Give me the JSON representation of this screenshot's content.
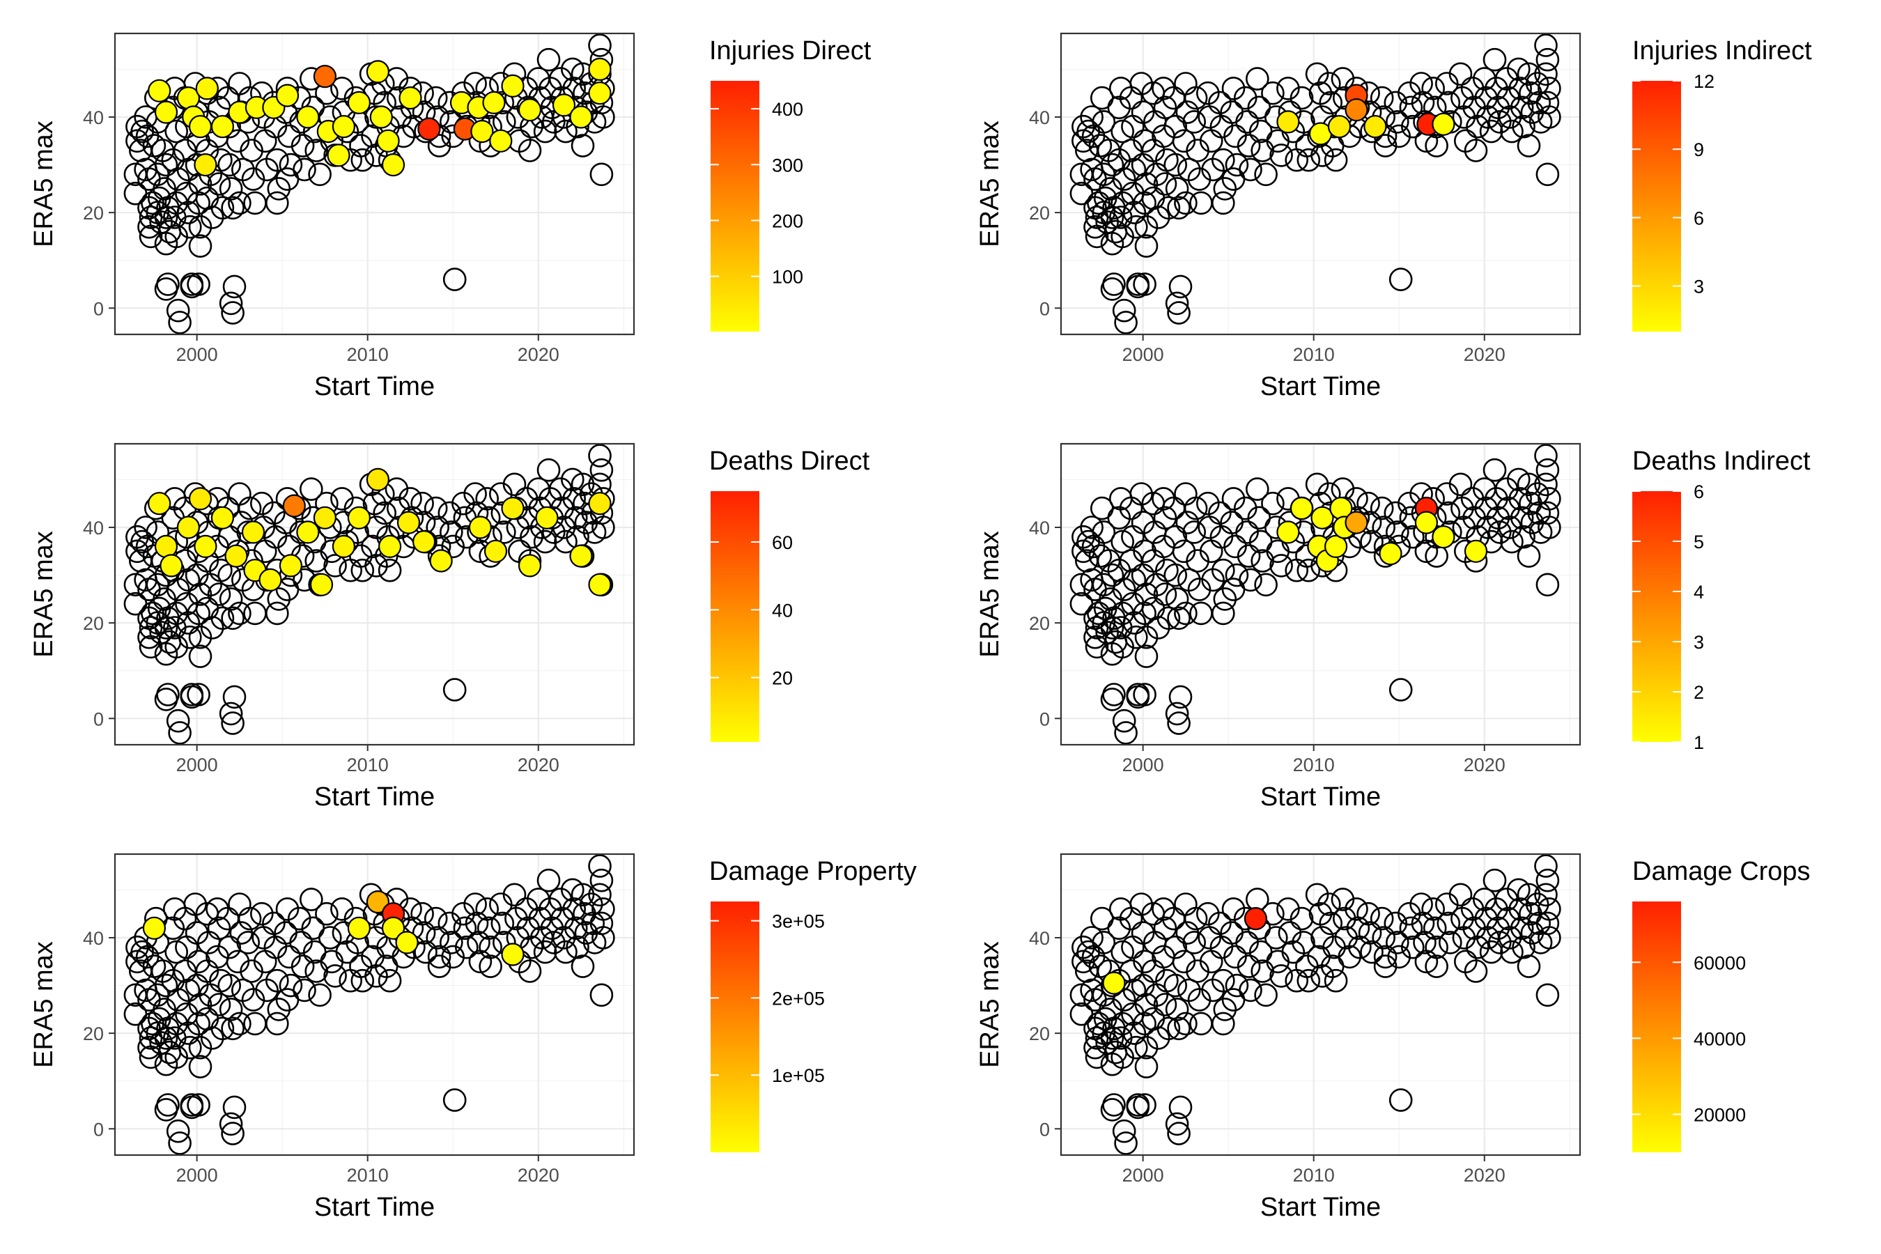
{
  "chart_data": [
    {
      "type": "scatter",
      "panel": "injuries-direct",
      "xlabel": "Start Time",
      "ylabel": "ERA5 max",
      "x_ticks": [
        2000,
        2010,
        2020
      ],
      "y_ticks": [
        0,
        20,
        40
      ],
      "xlim": [
        1995.2,
        2025.6
      ],
      "ylim": [
        -5.5,
        57.5
      ],
      "legend": {
        "title": "Injuries Direct",
        "min": 1,
        "max": 450,
        "ticks": [
          100,
          200,
          300,
          400
        ],
        "tick_labels": [
          "100",
          "200",
          "300",
          "400"
        ],
        "colors": [
          "#FFFF00",
          "#FF2000"
        ]
      },
      "highlighted": [
        {
          "x": 1997.8,
          "y": 45.5,
          "v": 5
        },
        {
          "x": 1998.2,
          "y": 41,
          "v": 8
        },
        {
          "x": 1999.5,
          "y": 44,
          "v": 12
        },
        {
          "x": 1999.8,
          "y": 40,
          "v": 6
        },
        {
          "x": 2000.2,
          "y": 38,
          "v": 10
        },
        {
          "x": 2000.6,
          "y": 46,
          "v": 20
        },
        {
          "x": 2000.5,
          "y": 30,
          "v": 35
        },
        {
          "x": 2001.5,
          "y": 38,
          "v": 6
        },
        {
          "x": 2002.5,
          "y": 41,
          "v": 7
        },
        {
          "x": 2003.5,
          "y": 42,
          "v": 9
        },
        {
          "x": 2004.5,
          "y": 42,
          "v": 4
        },
        {
          "x": 2005.3,
          "y": 44.5,
          "v": 8
        },
        {
          "x": 2006.5,
          "y": 40,
          "v": 6
        },
        {
          "x": 2007.5,
          "y": 48.5,
          "v": 300
        },
        {
          "x": 2007.7,
          "y": 37,
          "v": 8
        },
        {
          "x": 2008.3,
          "y": 32,
          "v": 4
        },
        {
          "x": 2008.6,
          "y": 38,
          "v": 10
        },
        {
          "x": 2009.5,
          "y": 43,
          "v": 6
        },
        {
          "x": 2010.6,
          "y": 49.5,
          "v": 15
        },
        {
          "x": 2010.8,
          "y": 40,
          "v": 5
        },
        {
          "x": 2011.2,
          "y": 35,
          "v": 9
        },
        {
          "x": 2011.5,
          "y": 30,
          "v": 12
        },
        {
          "x": 2012.5,
          "y": 44,
          "v": 7
        },
        {
          "x": 2013.6,
          "y": 37.5,
          "v": 430
        },
        {
          "x": 2015.5,
          "y": 43,
          "v": 10
        },
        {
          "x": 2015.7,
          "y": 37.5,
          "v": 350
        },
        {
          "x": 2016.5,
          "y": 42,
          "v": 8
        },
        {
          "x": 2016.7,
          "y": 37,
          "v": 15
        },
        {
          "x": 2017.4,
          "y": 43,
          "v": 6
        },
        {
          "x": 2017.8,
          "y": 35,
          "v": 5
        },
        {
          "x": 2018.5,
          "y": 46.5,
          "v": 9
        },
        {
          "x": 2019.5,
          "y": 41.5,
          "v": 7
        },
        {
          "x": 2021.5,
          "y": 42.5,
          "v": 8
        },
        {
          "x": 2022.5,
          "y": 40,
          "v": 6
        },
        {
          "x": 2023.6,
          "y": 45,
          "v": 12
        },
        {
          "x": 2023.6,
          "y": 50,
          "v": 20
        }
      ]
    },
    {
      "type": "scatter",
      "panel": "injuries-indirect",
      "xlabel": "Start Time",
      "ylabel": "ERA5 max",
      "x_ticks": [
        2000,
        2010,
        2020
      ],
      "y_ticks": [
        0,
        20,
        40
      ],
      "xlim": [
        1995.2,
        2025.6
      ],
      "ylim": [
        -5.5,
        57.5
      ],
      "legend": {
        "title": "Injuries Indirect",
        "min": 1,
        "max": 12,
        "ticks": [
          3,
          6,
          9,
          12
        ],
        "tick_labels": [
          "3",
          "6",
          "9",
          "12"
        ],
        "colors": [
          "#FFFF00",
          "#FF2000"
        ]
      },
      "highlighted": [
        {
          "x": 2008.5,
          "y": 39,
          "v": 2
        },
        {
          "x": 2010.4,
          "y": 36.5,
          "v": 1
        },
        {
          "x": 2011.5,
          "y": 38,
          "v": 2
        },
        {
          "x": 2012.5,
          "y": 44.5,
          "v": 10
        },
        {
          "x": 2012.5,
          "y": 41.5,
          "v": 7
        },
        {
          "x": 2013.6,
          "y": 38,
          "v": 2
        },
        {
          "x": 2016.7,
          "y": 38.5,
          "v": 12
        },
        {
          "x": 2017.6,
          "y": 38.5,
          "v": 1
        }
      ]
    },
    {
      "type": "scatter",
      "panel": "deaths-direct",
      "xlabel": "Start Time",
      "ylabel": "ERA5 max",
      "x_ticks": [
        2000,
        2010,
        2020
      ],
      "y_ticks": [
        0,
        20,
        40
      ],
      "xlim": [
        1995.2,
        2025.6
      ],
      "ylim": [
        -5.5,
        57.5
      ],
      "legend": {
        "title": "Deaths Direct",
        "min": 1,
        "max": 75,
        "ticks": [
          20,
          40,
          60
        ],
        "tick_labels": [
          "20",
          "40",
          "60"
        ],
        "colors": [
          "#FFFF00",
          "#FF2000"
        ]
      },
      "highlighted": [
        {
          "x": 1997.8,
          "y": 45,
          "v": 4
        },
        {
          "x": 1998.2,
          "y": 36,
          "v": 6
        },
        {
          "x": 1998.5,
          "y": 32,
          "v": 3
        },
        {
          "x": 1999.5,
          "y": 40,
          "v": 5
        },
        {
          "x": 2000.2,
          "y": 46,
          "v": 8
        },
        {
          "x": 2000.5,
          "y": 36,
          "v": 3
        },
        {
          "x": 2001.5,
          "y": 42,
          "v": 4
        },
        {
          "x": 2002.3,
          "y": 34,
          "v": 6
        },
        {
          "x": 2003.3,
          "y": 39,
          "v": 5
        },
        {
          "x": 2003.4,
          "y": 31,
          "v": 3
        },
        {
          "x": 2004.3,
          "y": 29,
          "v": 4
        },
        {
          "x": 2005.7,
          "y": 44.5,
          "v": 45
        },
        {
          "x": 2005.5,
          "y": 32,
          "v": 4
        },
        {
          "x": 2006.5,
          "y": 39,
          "v": 3
        },
        {
          "x": 2007.5,
          "y": 42,
          "v": 7
        },
        {
          "x": 2007.3,
          "y": 28,
          "v": 3
        },
        {
          "x": 2008.6,
          "y": 36,
          "v": 5
        },
        {
          "x": 2009.5,
          "y": 42,
          "v": 4
        },
        {
          "x": 2010.6,
          "y": 50,
          "v": 9
        },
        {
          "x": 2011.3,
          "y": 36,
          "v": 3
        },
        {
          "x": 2012.4,
          "y": 41,
          "v": 6
        },
        {
          "x": 2013.3,
          "y": 37,
          "v": 5
        },
        {
          "x": 2014.3,
          "y": 33,
          "v": 3
        },
        {
          "x": 2016.6,
          "y": 40,
          "v": 4
        },
        {
          "x": 2017.5,
          "y": 35,
          "v": 5
        },
        {
          "x": 2018.5,
          "y": 44,
          "v": 6
        },
        {
          "x": 2019.5,
          "y": 32,
          "v": 3
        },
        {
          "x": 2020.5,
          "y": 42,
          "v": 4
        },
        {
          "x": 2022.5,
          "y": 34,
          "v": 3
        },
        {
          "x": 2023.6,
          "y": 45,
          "v": 8
        },
        {
          "x": 2023.6,
          "y": 28,
          "v": 2
        }
      ]
    },
    {
      "type": "scatter",
      "panel": "deaths-indirect",
      "xlabel": "Start Time",
      "ylabel": "ERA5 max",
      "x_ticks": [
        2000,
        2010,
        2020
      ],
      "y_ticks": [
        0,
        20,
        40
      ],
      "xlim": [
        1995.2,
        2025.6
      ],
      "ylim": [
        -5.5,
        57.5
      ],
      "legend": {
        "title": "Deaths Indirect",
        "min": 1,
        "max": 6,
        "ticks": [
          1,
          2,
          3,
          4,
          5,
          6
        ],
        "tick_labels": [
          "1",
          "2",
          "3",
          "4",
          "5",
          "6"
        ],
        "colors": [
          "#FFFF00",
          "#FF2000"
        ]
      },
      "highlighted": [
        {
          "x": 2008.5,
          "y": 39,
          "v": 1
        },
        {
          "x": 2009.3,
          "y": 44,
          "v": 1
        },
        {
          "x": 2010.3,
          "y": 36,
          "v": 1
        },
        {
          "x": 2010.5,
          "y": 42,
          "v": 1
        },
        {
          "x": 2010.8,
          "y": 33,
          "v": 1
        },
        {
          "x": 2011.3,
          "y": 36,
          "v": 1
        },
        {
          "x": 2011.6,
          "y": 44,
          "v": 1
        },
        {
          "x": 2011.8,
          "y": 40,
          "v": 1
        },
        {
          "x": 2012.5,
          "y": 41,
          "v": 3
        },
        {
          "x": 2014.5,
          "y": 34.5,
          "v": 1
        },
        {
          "x": 2016.6,
          "y": 44,
          "v": 6
        },
        {
          "x": 2016.6,
          "y": 41,
          "v": 1
        },
        {
          "x": 2017.6,
          "y": 38,
          "v": 1
        },
        {
          "x": 2019.5,
          "y": 35,
          "v": 1
        }
      ]
    },
    {
      "type": "scatter",
      "panel": "damage-property",
      "xlabel": "Start Time",
      "ylabel": "ERA5 max",
      "x_ticks": [
        2000,
        2010,
        2020
      ],
      "y_ticks": [
        0,
        20,
        40
      ],
      "xlim": [
        1995.2,
        2025.6
      ],
      "ylim": [
        -5.5,
        57.5
      ],
      "legend": {
        "title": "Damage Property",
        "min": 1,
        "max": 325000,
        "ticks": [
          100000,
          200000,
          300000
        ],
        "tick_labels": [
          "1e+05",
          "2e+05",
          "3e+05"
        ],
        "colors": [
          "#FFFF00",
          "#FF2000"
        ]
      },
      "highlighted": [
        {
          "x": 1997.5,
          "y": 42,
          "v": 5000
        },
        {
          "x": 2009.5,
          "y": 42,
          "v": 8000
        },
        {
          "x": 2010.6,
          "y": 47.5,
          "v": 110000
        },
        {
          "x": 2011.5,
          "y": 45,
          "v": 320000
        },
        {
          "x": 2011.5,
          "y": 42,
          "v": 9000
        },
        {
          "x": 2012.3,
          "y": 39,
          "v": 5000
        },
        {
          "x": 2018.5,
          "y": 36.5,
          "v": 6000
        }
      ]
    },
    {
      "type": "scatter",
      "panel": "damage-crops",
      "xlabel": "Start Time",
      "ylabel": "ERA5 max",
      "x_ticks": [
        2000,
        2010,
        2020
      ],
      "y_ticks": [
        0,
        20,
        40
      ],
      "xlim": [
        1995.2,
        2025.6
      ],
      "ylim": [
        -5.5,
        57.5
      ],
      "legend": {
        "title": "Damage Crops",
        "min": 10000,
        "max": 76000,
        "ticks": [
          20000,
          40000,
          60000
        ],
        "tick_labels": [
          "20000",
          "40000",
          "60000"
        ],
        "colors": [
          "#FFFF00",
          "#FF2000"
        ]
      },
      "highlighted": [
        {
          "x": 1998.3,
          "y": 30.5,
          "v": 10000
        },
        {
          "x": 2006.6,
          "y": 44,
          "v": 76000
        }
      ]
    }
  ],
  "background_points": [
    [
      1996.5,
      38
    ],
    [
      1996.5,
      35
    ],
    [
      1996.7,
      33
    ],
    [
      1996.4,
      28
    ],
    [
      1996.4,
      24
    ],
    [
      1996.8,
      37
    ],
    [
      1997.0,
      40
    ],
    [
      1997.1,
      36
    ],
    [
      1997.0,
      29
    ],
    [
      1997.2,
      27
    ],
    [
      1997.2,
      21
    ],
    [
      1997.3,
      19
    ],
    [
      1997.2,
      17
    ],
    [
      1997.4,
      22
    ],
    [
      1997.3,
      15
    ],
    [
      1997.6,
      44
    ],
    [
      1997.7,
      39
    ],
    [
      1997.5,
      34
    ],
    [
      1997.7,
      28
    ],
    [
      1997.8,
      23
    ],
    [
      1997.7,
      20
    ],
    [
      1997.9,
      18
    ],
    [
      1998.0,
      33
    ],
    [
      1998.2,
      30
    ],
    [
      1998.1,
      25
    ],
    [
      1998.3,
      21
    ],
    [
      1998.2,
      19
    ],
    [
      1998.4,
      16
    ],
    [
      1998.2,
      13.5
    ],
    [
      1998.3,
      5
    ],
    [
      1998.2,
      4
    ],
    [
      1998.7,
      46
    ],
    [
      1998.6,
      42
    ],
    [
      1998.8,
      37
    ],
    [
      1998.6,
      31
    ],
    [
      1998.9,
      27
    ],
    [
      1998.8,
      22
    ],
    [
      1998.7,
      19
    ],
    [
      1998.8,
      15
    ],
    [
      1998.9,
      -0.5
    ],
    [
      1999.0,
      -3
    ],
    [
      1999.3,
      44
    ],
    [
      1999.4,
      38
    ],
    [
      1999.3,
      33
    ],
    [
      1999.5,
      29
    ],
    [
      1999.4,
      24
    ],
    [
      1999.5,
      20
    ],
    [
      1999.6,
      17
    ],
    [
      1999.7,
      4.5
    ],
    [
      1999.7,
      5
    ],
    [
      1999.9,
      47
    ],
    [
      2000.0,
      41
    ],
    [
      2000.1,
      35
    ],
    [
      2000.0,
      30
    ],
    [
      2000.2,
      26
    ],
    [
      2000.1,
      22
    ],
    [
      2000.2,
      17
    ],
    [
      2000.2,
      13
    ],
    [
      2000.1,
      5
    ],
    [
      2000.6,
      45
    ],
    [
      2000.7,
      39
    ],
    [
      2000.6,
      33
    ],
    [
      2000.8,
      28
    ],
    [
      2000.6,
      23
    ],
    [
      2000.9,
      19
    ],
    [
      2001.2,
      46
    ],
    [
      2001.3,
      42
    ],
    [
      2001.2,
      36
    ],
    [
      2001.4,
      31
    ],
    [
      2001.3,
      26
    ],
    [
      2001.5,
      21
    ],
    [
      2001.8,
      44
    ],
    [
      2001.9,
      38
    ],
    [
      2001.9,
      30
    ],
    [
      2002.0,
      25
    ],
    [
      2002.1,
      21
    ],
    [
      2002.2,
      4.5
    ],
    [
      2002.0,
      1
    ],
    [
      2002.1,
      -1
    ],
    [
      2002.5,
      47
    ],
    [
      2002.6,
      41
    ],
    [
      2002.4,
      35
    ],
    [
      2002.7,
      29
    ],
    [
      2002.5,
      22
    ],
    [
      2003.1,
      44
    ],
    [
      2003.0,
      39
    ],
    [
      2003.2,
      33
    ],
    [
      2003.3,
      27
    ],
    [
      2003.4,
      22
    ],
    [
      2003.8,
      45
    ],
    [
      2003.9,
      40
    ],
    [
      2004.0,
      35
    ],
    [
      2004.1,
      29
    ],
    [
      2004.5,
      43
    ],
    [
      2004.6,
      38
    ],
    [
      2004.7,
      31
    ],
    [
      2004.8,
      25
    ],
    [
      2004.7,
      22
    ],
    [
      2005.3,
      46
    ],
    [
      2005.2,
      41
    ],
    [
      2005.4,
      36
    ],
    [
      2005.5,
      30
    ],
    [
      2005.3,
      27
    ],
    [
      2006.0,
      44
    ],
    [
      2006.1,
      39
    ],
    [
      2006.2,
      34
    ],
    [
      2006.3,
      29
    ],
    [
      2006.7,
      48
    ],
    [
      2006.8,
      42
    ],
    [
      2006.9,
      37
    ],
    [
      2007.0,
      33
    ],
    [
      2007.2,
      28
    ],
    [
      2007.6,
      45
    ],
    [
      2007.8,
      40
    ],
    [
      2007.9,
      35
    ],
    [
      2008.1,
      32
    ],
    [
      2008.5,
      46
    ],
    [
      2008.6,
      41
    ],
    [
      2008.8,
      37
    ],
    [
      2009.0,
      31
    ],
    [
      2009.3,
      44
    ],
    [
      2009.4,
      39
    ],
    [
      2009.6,
      34
    ],
    [
      2009.7,
      31
    ],
    [
      2010.2,
      49
    ],
    [
      2010.4,
      45
    ],
    [
      2010.5,
      40
    ],
    [
      2010.3,
      36
    ],
    [
      2010.5,
      32
    ],
    [
      2010.9,
      47
    ],
    [
      2011.0,
      43
    ],
    [
      2011.2,
      38
    ],
    [
      2011.1,
      34
    ],
    [
      2011.3,
      31
    ],
    [
      2011.7,
      48
    ],
    [
      2011.8,
      44
    ],
    [
      2011.9,
      40
    ],
    [
      2012.1,
      36
    ],
    [
      2012.5,
      46
    ],
    [
      2012.6,
      42
    ],
    [
      2012.7,
      38
    ],
    [
      2013.2,
      45
    ],
    [
      2013.3,
      41
    ],
    [
      2013.4,
      37
    ],
    [
      2014.0,
      44
    ],
    [
      2014.1,
      40
    ],
    [
      2014.2,
      36
    ],
    [
      2014.2,
      34
    ],
    [
      2014.8,
      43
    ],
    [
      2014.9,
      39
    ],
    [
      2015.1,
      6
    ],
    [
      2015.0,
      36
    ],
    [
      2015.6,
      45
    ],
    [
      2015.7,
      42
    ],
    [
      2015.8,
      38
    ],
    [
      2016.3,
      47
    ],
    [
      2016.4,
      43
    ],
    [
      2016.5,
      39
    ],
    [
      2016.6,
      35
    ],
    [
      2017.0,
      46
    ],
    [
      2017.1,
      42
    ],
    [
      2017.2,
      38
    ],
    [
      2017.2,
      34
    ],
    [
      2017.8,
      47
    ],
    [
      2017.9,
      43
    ],
    [
      2018.0,
      39
    ],
    [
      2018.6,
      49
    ],
    [
      2018.7,
      44
    ],
    [
      2018.8,
      40
    ],
    [
      2018.9,
      35
    ],
    [
      2019.3,
      46
    ],
    [
      2019.4,
      42
    ],
    [
      2019.6,
      38
    ],
    [
      2019.5,
      33
    ],
    [
      2020.0,
      48
    ],
    [
      2020.1,
      44
    ],
    [
      2020.2,
      40
    ],
    [
      2020.4,
      37
    ],
    [
      2020.6,
      52
    ],
    [
      2020.7,
      46
    ],
    [
      2020.8,
      42
    ],
    [
      2020.9,
      39
    ],
    [
      2021.3,
      48
    ],
    [
      2021.4,
      44
    ],
    [
      2021.5,
      40
    ],
    [
      2021.6,
      37
    ],
    [
      2022.0,
      50
    ],
    [
      2022.1,
      46
    ],
    [
      2022.2,
      42
    ],
    [
      2022.3,
      38
    ],
    [
      2022.6,
      49
    ],
    [
      2022.7,
      45
    ],
    [
      2022.8,
      41
    ],
    [
      2022.6,
      34
    ],
    [
      2023.1,
      47
    ],
    [
      2023.2,
      43
    ],
    [
      2023.3,
      39
    ],
    [
      2023.6,
      55
    ],
    [
      2023.7,
      52
    ],
    [
      2023.6,
      49
    ],
    [
      2023.8,
      46
    ],
    [
      2023.7,
      43
    ],
    [
      2023.8,
      40
    ],
    [
      2023.7,
      28
    ]
  ]
}
